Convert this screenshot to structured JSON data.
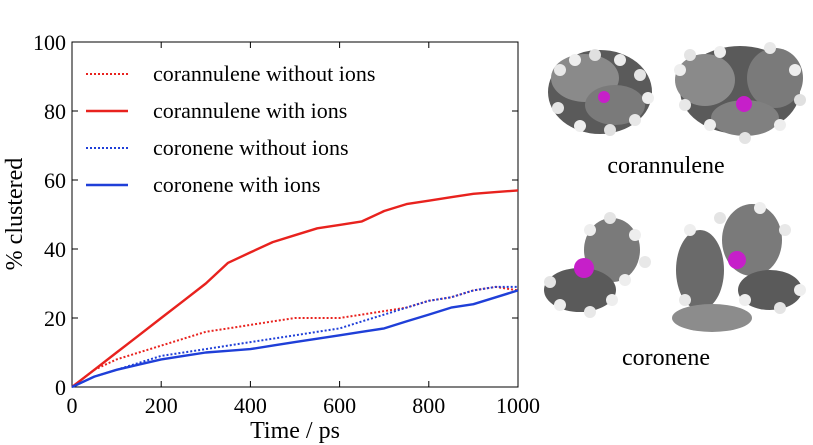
{
  "chart_data": {
    "type": "line",
    "xlabel": "Time / ps",
    "ylabel": "% clustered",
    "xlim": [
      0,
      1000
    ],
    "ylim": [
      0,
      100
    ],
    "xticks": [
      "0",
      "200",
      "400",
      "600",
      "800",
      "1000"
    ],
    "yticks": [
      "0",
      "20",
      "40",
      "60",
      "80",
      "100"
    ],
    "grid": false,
    "legend_position": "top-left",
    "x": [
      0,
      50,
      100,
      150,
      200,
      250,
      300,
      350,
      400,
      450,
      500,
      550,
      600,
      650,
      700,
      750,
      800,
      850,
      900,
      950,
      1000
    ],
    "series": [
      {
        "name": "corannulene without ions",
        "color": "#e8221e",
        "style": "dotted",
        "values": [
          0,
          5,
          8,
          10,
          12,
          14,
          16,
          17,
          18,
          19,
          20,
          20,
          20,
          21,
          22,
          23,
          25,
          26,
          28,
          29,
          28
        ]
      },
      {
        "name": "corannulene with ions",
        "color": "#e8221e",
        "style": "solid",
        "values": [
          0,
          5,
          10,
          15,
          20,
          25,
          30,
          36,
          39,
          42,
          44,
          46,
          47,
          48,
          51,
          53,
          54,
          55,
          56,
          56.5,
          57
        ]
      },
      {
        "name": "coronene without ions",
        "color": "#1f3fd8",
        "style": "dotted",
        "values": [
          0,
          3,
          5,
          7,
          9,
          10,
          11,
          12,
          13,
          14,
          15,
          16,
          17,
          19,
          21,
          23,
          25,
          26,
          28,
          29,
          29
        ]
      },
      {
        "name": "coronene with ions",
        "color": "#1f3fd8",
        "style": "solid",
        "values": [
          0,
          3,
          5,
          6.5,
          8,
          9,
          10,
          10.5,
          11,
          12,
          13,
          14,
          15,
          16,
          17,
          19,
          21,
          23,
          24,
          26,
          28
        ]
      }
    ]
  },
  "figure": {
    "label_corannulene": "corannulene",
    "label_coronene": "coronene"
  }
}
